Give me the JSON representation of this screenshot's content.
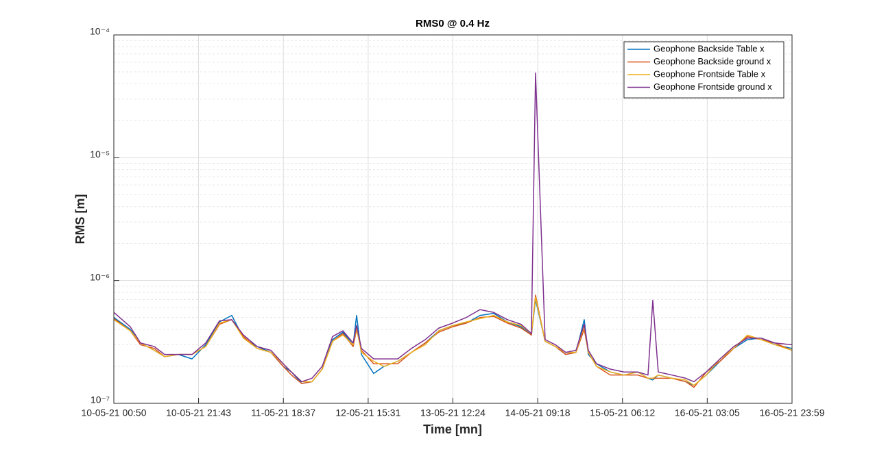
{
  "chart_data": {
    "type": "line",
    "title": "RMS0 @ 0.4 Hz",
    "xlabel": "Time [mn]",
    "ylabel": "RMS [m]",
    "log_y": true,
    "grid": true,
    "minor_grid": true,
    "legend": "upper right",
    "xlim": [
      0,
      10029
    ],
    "xticks": [
      {
        "value": 0,
        "label": "10-05-21 00:50"
      },
      {
        "value": 1253,
        "label": "10-05-21 21:43"
      },
      {
        "value": 2507,
        "label": "11-05-21 18:37"
      },
      {
        "value": 3761,
        "label": "12-05-21 15:31"
      },
      {
        "value": 5014,
        "label": "13-05-21 12:24"
      },
      {
        "value": 6268,
        "label": "14-05-21 09:18"
      },
      {
        "value": 7522,
        "label": "15-05-21 06:12"
      },
      {
        "value": 8775,
        "label": "16-05-21 03:05"
      },
      {
        "value": 10029,
        "label": "16-05-21 23:59"
      }
    ],
    "ylim": [
      1e-07,
      0.0001
    ],
    "yticks": [
      {
        "value": 1e-07,
        "label": "10⁻⁷"
      },
      {
        "value": 1e-06,
        "label": "10⁻⁶"
      },
      {
        "value": 1e-05,
        "label": "10⁻⁵"
      },
      {
        "value": 0.0001,
        "label": "10⁻⁴"
      }
    ],
    "x": [
      0,
      243,
      395,
      598,
      751,
      953,
      1156,
      1359,
      1562,
      1744,
      1916,
      2119,
      2322,
      2505,
      2626,
      2778,
      2930,
      3082,
      3235,
      3387,
      3539,
      3590,
      3661,
      3843,
      3995,
      4198,
      4401,
      4604,
      4806,
      5009,
      5212,
      5415,
      5618,
      5820,
      6023,
      6175,
      6236,
      6378,
      6530,
      6682,
      6834,
      6956,
      7017,
      7138,
      7341,
      7544,
      7747,
      7899,
      7970,
      8051,
      8254,
      8457,
      8578,
      8761,
      8964,
      9167,
      9369,
      9572,
      9775,
      10029
    ],
    "series": [
      {
        "name": "Geophone Backside Table x",
        "color": "#0072BD",
        "values": [
          5e-07,
          4e-07,
          3.1e-07,
          2.7e-07,
          2.4e-07,
          2.5e-07,
          2.3e-07,
          3e-07,
          4.6e-07,
          5.2e-07,
          3.4e-07,
          2.9e-07,
          2.6e-07,
          2e-07,
          1.8e-07,
          1.45e-07,
          1.5e-07,
          1.9e-07,
          3.3e-07,
          3.8e-07,
          3e-07,
          5.2e-07,
          2.5e-07,
          1.75e-07,
          2e-07,
          2.2e-07,
          2.6e-07,
          3.1e-07,
          3.9e-07,
          4.3e-07,
          4.5e-07,
          5.2e-07,
          5.4e-07,
          4.6e-07,
          4.2e-07,
          3.6e-07,
          7e-07,
          3.2e-07,
          2.9e-07,
          2.5e-07,
          2.6e-07,
          4.8e-07,
          2.5e-07,
          2.1e-07,
          1.8e-07,
          1.7e-07,
          1.8e-07,
          1.6e-07,
          1.55e-07,
          1.7e-07,
          1.6e-07,
          1.5e-07,
          1.4e-07,
          1.7e-07,
          2.2e-07,
          2.8e-07,
          3.3e-07,
          3.4e-07,
          3e-07,
          2.8e-07
        ]
      },
      {
        "name": "Geophone Backside ground x",
        "color": "#D95319",
        "values": [
          4.9e-07,
          3.9e-07,
          3e-07,
          2.8e-07,
          2.4e-07,
          2.5e-07,
          2.5e-07,
          2.9e-07,
          4.4e-07,
          4.8e-07,
          3.5e-07,
          2.8e-07,
          2.6e-07,
          2e-07,
          1.7e-07,
          1.45e-07,
          1.5e-07,
          1.9e-07,
          3.2e-07,
          3.7e-07,
          2.9e-07,
          4e-07,
          2.7e-07,
          2.1e-07,
          2.1e-07,
          2.1e-07,
          2.6e-07,
          3.1e-07,
          3.8e-07,
          4.2e-07,
          4.5e-07,
          5e-07,
          5.1e-07,
          4.5e-07,
          4.1e-07,
          3.6e-07,
          7.6e-07,
          3.2e-07,
          2.9e-07,
          2.5e-07,
          2.6e-07,
          4e-07,
          2.6e-07,
          2e-07,
          1.7e-07,
          1.7e-07,
          1.7e-07,
          1.6e-07,
          1.6e-07,
          1.6e-07,
          1.6e-07,
          1.5e-07,
          1.35e-07,
          1.8e-07,
          2.2e-07,
          2.8e-07,
          3.5e-07,
          3.3e-07,
          3.1e-07,
          2.7e-07
        ]
      },
      {
        "name": "Geophone Frontside Table x",
        "color": "#EDB120",
        "values": [
          4.8e-07,
          3.9e-07,
          3.1e-07,
          2.7e-07,
          2.4e-07,
          2.5e-07,
          2.5e-07,
          2.9e-07,
          4.5e-07,
          4.8e-07,
          3.4e-07,
          2.8e-07,
          2.6e-07,
          2.1e-07,
          1.8e-07,
          1.5e-07,
          1.5e-07,
          1.9e-07,
          3.2e-07,
          3.6e-07,
          3e-07,
          4.1e-07,
          2.6e-07,
          2.2e-07,
          2e-07,
          2.2e-07,
          2.6e-07,
          3e-07,
          3.9e-07,
          4.3e-07,
          4.6e-07,
          4.9e-07,
          5.2e-07,
          4.6e-07,
          4.3e-07,
          3.7e-07,
          7.3e-07,
          3.2e-07,
          2.9e-07,
          2.6e-07,
          2.6e-07,
          4.3e-07,
          2.6e-07,
          2e-07,
          1.8e-07,
          1.7e-07,
          1.8e-07,
          1.6e-07,
          1.6e-07,
          1.7e-07,
          1.6e-07,
          1.55e-07,
          1.4e-07,
          1.7e-07,
          2.3e-07,
          2.8e-07,
          3.6e-07,
          3.3e-07,
          3e-07,
          2.7e-07
        ]
      },
      {
        "name": "Geophone Frontside ground x",
        "color": "#7E2F8E",
        "values": [
          5.5e-07,
          4.2e-07,
          3.1e-07,
          2.9e-07,
          2.5e-07,
          2.5e-07,
          2.5e-07,
          3.1e-07,
          4.7e-07,
          4.8e-07,
          3.6e-07,
          2.9e-07,
          2.7e-07,
          2.1e-07,
          1.8e-07,
          1.5e-07,
          1.6e-07,
          2e-07,
          3.5e-07,
          3.9e-07,
          3.1e-07,
          4.3e-07,
          2.8e-07,
          2.3e-07,
          2.3e-07,
          2.3e-07,
          2.8e-07,
          3.3e-07,
          4.1e-07,
          4.5e-07,
          5e-07,
          5.8e-07,
          5.5e-07,
          4.8e-07,
          4.4e-07,
          3.7e-07,
          4.9e-05,
          3.3e-07,
          3e-07,
          2.6e-07,
          2.7e-07,
          4.4e-07,
          2.7e-07,
          2.1e-07,
          1.9e-07,
          1.8e-07,
          1.8e-07,
          1.7e-07,
          6.9e-07,
          1.8e-07,
          1.7e-07,
          1.6e-07,
          1.5e-07,
          1.8e-07,
          2.3e-07,
          2.9e-07,
          3.4e-07,
          3.4e-07,
          3.1e-07,
          3e-07
        ]
      }
    ]
  }
}
